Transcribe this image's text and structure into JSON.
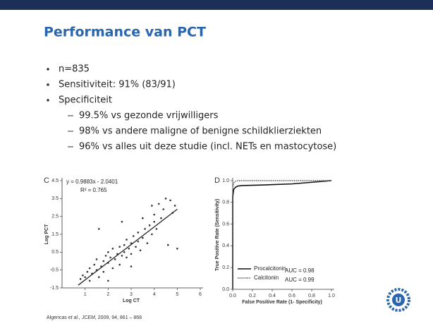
{
  "slide": {
    "title": "Performance van PCT",
    "bullets": [
      "n=835",
      "Sensitiviteit: 91% (83/91)",
      "Specificiteit"
    ],
    "sub_bullets": [
      "99.5% vs gezonde vrijwilligers",
      "98% vs andere maligne of benigne schildklierziekten",
      "96% vs alles uit deze studie (incl. NETs en mastocytose)"
    ]
  },
  "chart_data": [
    {
      "type": "scatter",
      "panel": "C",
      "equation": "y = 0.9883x - 2.0401",
      "r2": "R² = 0.765",
      "x_label": "Log CT",
      "y_label": "Log PCT",
      "color": "#333333",
      "xlim": [
        0,
        6
      ],
      "xticks": [
        1,
        2,
        3,
        4,
        5,
        6
      ],
      "ylim": [
        -1.5,
        4.5
      ],
      "yticks": [
        4.5,
        3.5,
        2.5,
        1.5,
        0.5,
        -0.5,
        -1.5
      ],
      "x": [
        0.8,
        0.9,
        1.0,
        1.1,
        1.2,
        1.2,
        1.3,
        1.4,
        1.5,
        1.5,
        1.6,
        1.7,
        1.8,
        1.8,
        1.9,
        2.0,
        2.0,
        2.1,
        2.2,
        2.2,
        2.3,
        2.4,
        2.5,
        2.5,
        2.6,
        2.7,
        2.7,
        2.8,
        2.8,
        2.9,
        3.0,
        3.0,
        3.1,
        3.2,
        3.3,
        3.3,
        3.4,
        3.5,
        3.5,
        3.6,
        3.7,
        3.8,
        3.9,
        4.0,
        4.0,
        4.1,
        4.2,
        4.3,
        4.4,
        4.5,
        4.6,
        4.7,
        4.8,
        4.9,
        5.0,
        1.6,
        2.6,
        3.9,
        2.0,
        3.0
      ],
      "values": [
        -1.0,
        -0.8,
        -0.9,
        -0.6,
        -1.1,
        -0.4,
        -0.7,
        -0.2,
        -0.5,
        0.1,
        -0.9,
        -0.3,
        0.0,
        -0.6,
        0.3,
        -0.1,
        0.5,
        0.2,
        -0.4,
        0.7,
        0.1,
        0.4,
        0.8,
        -0.2,
        0.3,
        0.9,
        0.5,
        1.2,
        0.2,
        0.7,
        1.0,
        0.4,
        1.4,
        0.8,
        1.6,
        1.1,
        0.6,
        1.3,
        2.4,
        1.8,
        1.0,
        2.0,
        1.5,
        2.6,
        2.2,
        1.8,
        3.2,
        2.4,
        2.9,
        3.5,
        0.9,
        3.4,
        2.7,
        3.1,
        0.7,
        1.8,
        2.2,
        3.1,
        -1.1,
        -0.3
      ],
      "fit": {
        "x": [
          0.7,
          5.0
        ],
        "y": [
          -1.35,
          2.9
        ]
      }
    },
    {
      "type": "line",
      "panel": "D",
      "x_label": "False Positive Rate (1- Specificity)",
      "y_label": "True Positive Rate (Sensitivity)",
      "xlim": [
        0,
        1
      ],
      "xticks": [
        {
          "value": 0,
          "label": "0.0"
        },
        0.2,
        0.4,
        0.6,
        0.8,
        {
          "value": 1,
          "label": "1.0"
        }
      ],
      "ylim": [
        0,
        1
      ],
      "yticks": [
        {
          "value": 0,
          "label": "0.0"
        },
        0.2,
        0.4,
        0.6,
        0.8,
        {
          "value": 1,
          "label": "1.0"
        }
      ],
      "series": [
        {
          "name": "Procalcitonin",
          "color": "#111111",
          "auc": "AUC = 0.98",
          "x": [
            0,
            0,
            0.01,
            0.03,
            0.05,
            0.1,
            0.3,
            0.6,
            1.0
          ],
          "values": [
            0,
            0.85,
            0.92,
            0.94,
            0.95,
            0.955,
            0.96,
            0.97,
            1.0
          ]
        },
        {
          "name": "Calcitonin",
          "color": "#555555",
          "auc": "AUC = 0.99",
          "x": [
            0,
            0,
            0.01,
            0.02,
            0.05,
            1.0
          ],
          "values": [
            0,
            0.93,
            0.98,
            0.99,
            1.0,
            1.0
          ]
        }
      ]
    }
  ],
  "citation": {
    "author": "Algericas",
    "etal": "et al.,",
    "journal": "JCEM,",
    "rest": "2009, 94, 861 – 868"
  },
  "logo": "U"
}
